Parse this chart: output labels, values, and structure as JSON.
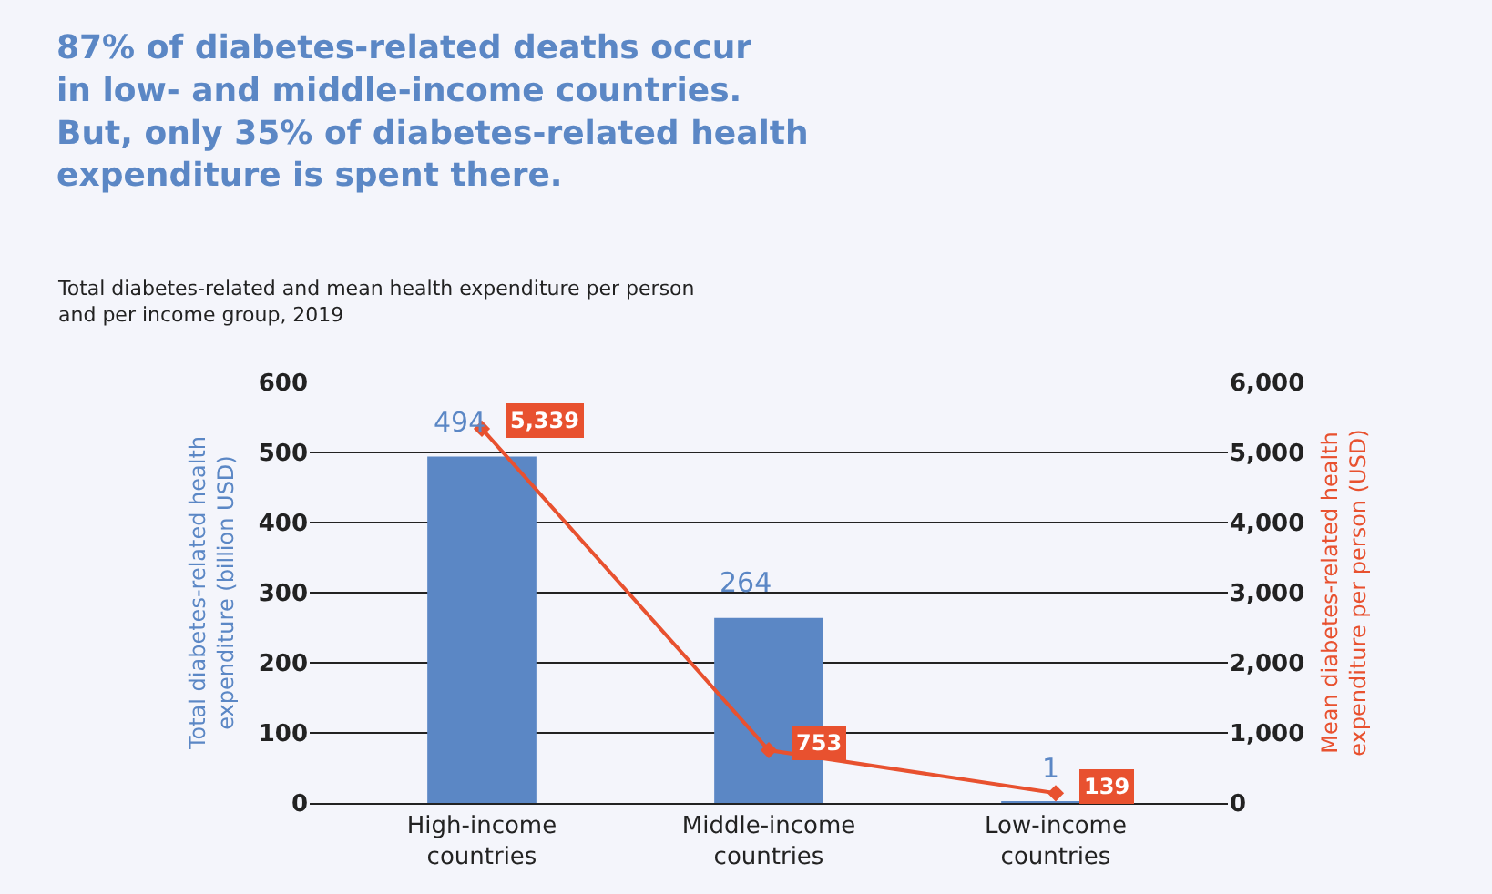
{
  "chart_data": {
    "type": "bar",
    "title": "87% of diabetes-related deaths occur\nin low- and middle-income countries.\nBut, only 35% of diabetes-related health\nexpenditure is spent there.",
    "subtitle": "Total diabetes-related and mean health expenditure per person\nand per income group, 2019",
    "ylabel": "Total diabetes-related health\nexpenditure (billion USD)",
    "y2label": "Mean diabetes-related health\nexpenditure per person (USD)",
    "categories": [
      "High-income\ncountries",
      "Middle-income\ncountries",
      "Low-income\ncountries"
    ],
    "series": [
      {
        "color": "#5b87c5",
        "values": [
          494,
          264,
          1
        ],
        "value_labels": [
          "494",
          "264",
          "1"
        ]
      },
      {
        "type": "line",
        "axis": "y2",
        "color": "#e8512f",
        "values": [
          5339,
          753,
          139
        ],
        "value_labels": [
          "5,339",
          "753",
          "139"
        ]
      }
    ],
    "ylim": [
      0,
      600
    ],
    "yticks": [
      0,
      100,
      200,
      300,
      400,
      500,
      600
    ],
    "y2lim": [
      0,
      6000
    ],
    "y2ticks": [
      0,
      {
        "value": 1000,
        "label": "1,000"
      },
      {
        "value": 2000,
        "label": "2,000"
      },
      {
        "value": 3000,
        "label": "3,000"
      },
      {
        "value": 4000,
        "label": "4,000"
      },
      {
        "value": 5000,
        "label": "5,000"
      },
      {
        "value": 6000,
        "label": "6,000"
      }
    ],
    "grid": "y",
    "legend": false,
    "marker": "diamond"
  }
}
